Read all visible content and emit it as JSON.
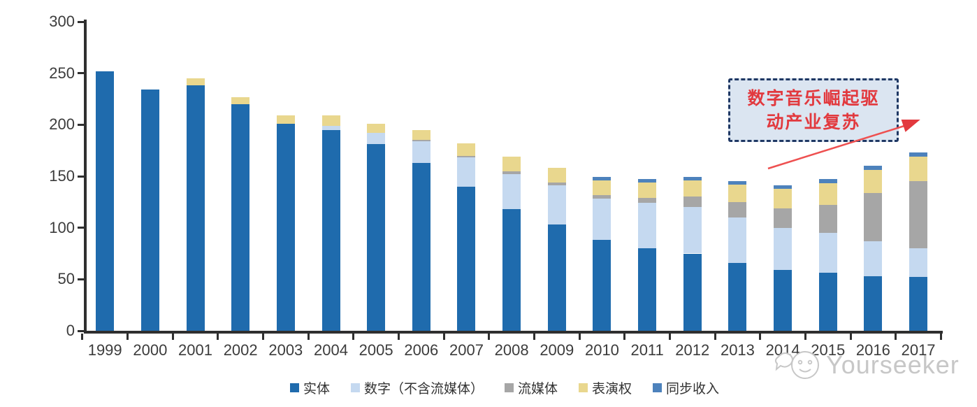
{
  "chart_data": {
    "type": "bar",
    "stacked": true,
    "title": "",
    "xlabel": "",
    "ylabel": "",
    "ylim": [
      0,
      300
    ],
    "yticks": [
      0,
      50,
      100,
      150,
      200,
      250,
      300
    ],
    "grid": false,
    "legend_position": "bottom",
    "categories": [
      "1999",
      "2000",
      "2001",
      "2002",
      "2003",
      "2004",
      "2005",
      "2006",
      "2007",
      "2008",
      "2009",
      "2010",
      "2011",
      "2012",
      "2013",
      "2014",
      "2015",
      "2016",
      "2017"
    ],
    "series": [
      {
        "name": "实体",
        "color": "#1f6bad",
        "values": [
          252,
          234,
          238,
          220,
          201,
          195,
          181,
          163,
          140,
          118,
          103,
          88,
          80,
          75,
          66,
          59,
          56,
          53,
          52
        ]
      },
      {
        "name": "数字（不含流媒体）",
        "color": "#c5d9f0",
        "values": [
          0,
          0,
          0,
          0,
          0,
          4,
          11,
          21,
          28,
          34,
          38,
          40,
          44,
          45,
          44,
          41,
          39,
          34,
          28
        ]
      },
      {
        "name": "流媒体",
        "color": "#a6a6a6",
        "values": [
          0,
          0,
          0,
          0,
          0,
          0,
          0,
          1,
          2,
          3,
          3,
          4,
          5,
          10,
          15,
          19,
          27,
          47,
          65
        ]
      },
      {
        "name": "表演权",
        "color": "#e9d78e",
        "values": [
          0,
          0,
          7,
          7,
          8,
          10,
          9,
          10,
          12,
          14,
          14,
          14,
          15,
          16,
          17,
          19,
          21,
          22,
          24
        ]
      },
      {
        "name": "同步收入",
        "color": "#4d82bc",
        "values": [
          0,
          0,
          0,
          0,
          0,
          0,
          0,
          0,
          0,
          0,
          0,
          3,
          3,
          3,
          3,
          3,
          4,
          4,
          4
        ]
      }
    ]
  },
  "annotation": {
    "line1": "数字音乐崛起驱",
    "line2": "动产业复苏",
    "text_color": "#e2393e",
    "box_fill": "#dbe5f1",
    "box_border": "#1f3864",
    "arrow_color": "#ee5050"
  },
  "watermark": {
    "text": "Yourseeker",
    "color": "#c7c7c7"
  }
}
